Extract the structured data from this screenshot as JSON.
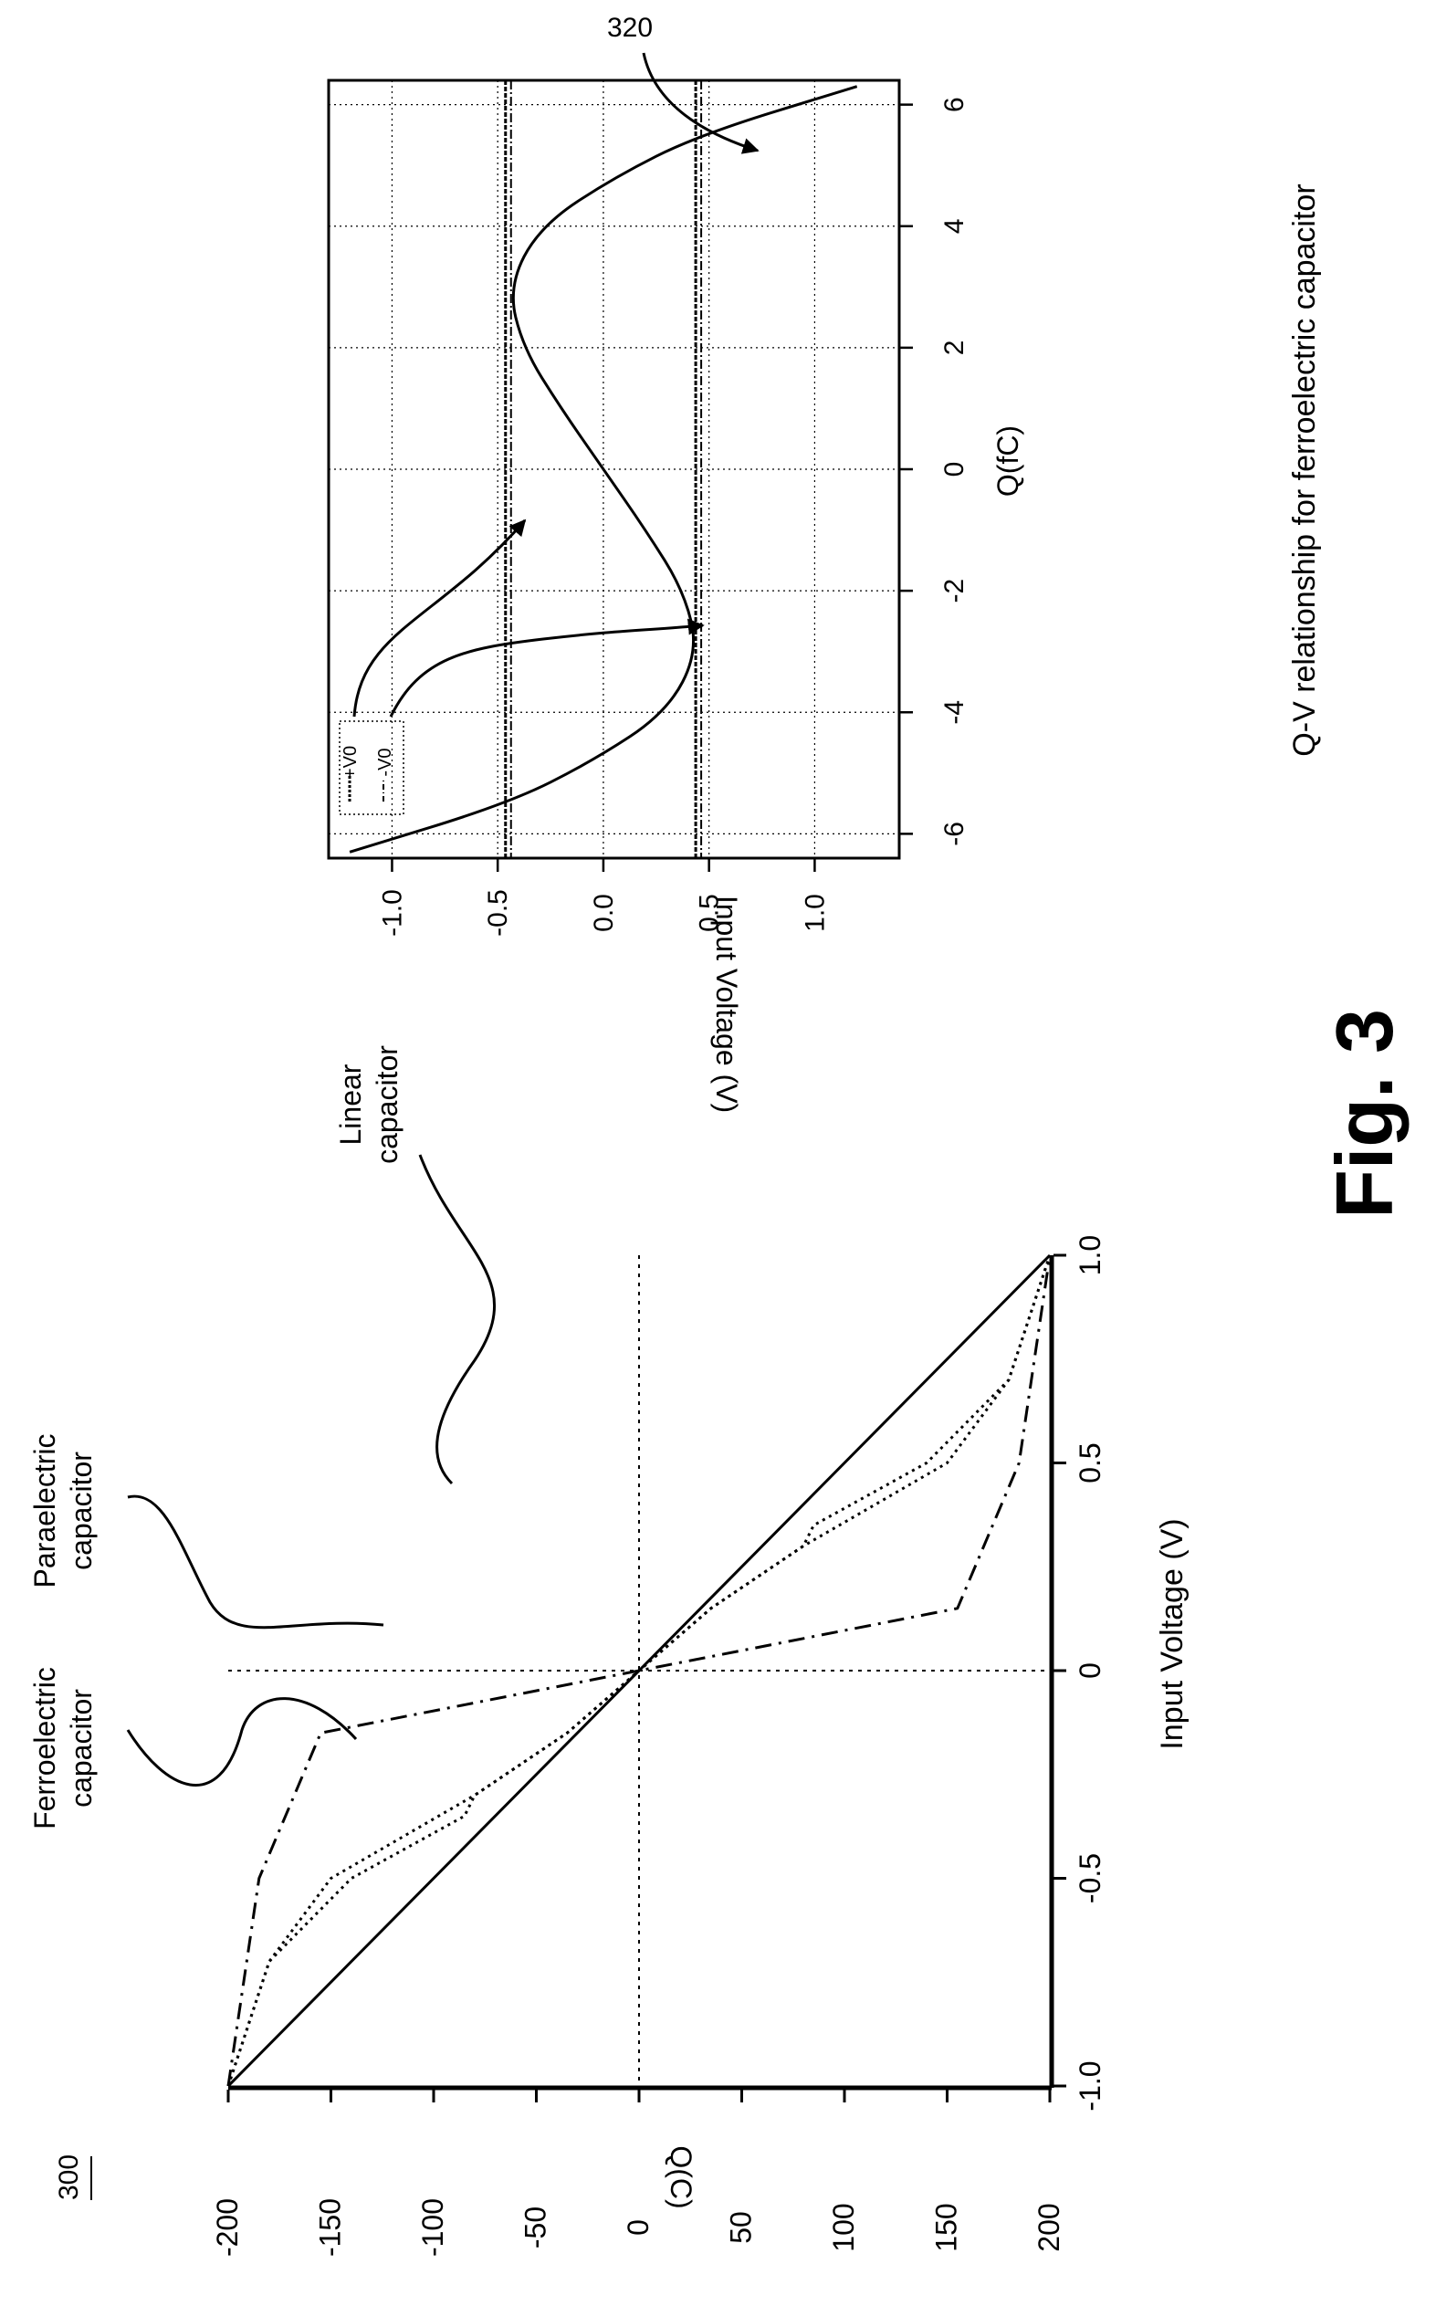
{
  "figure": {
    "ref_main": "300",
    "ref_inset": "320",
    "caption": "Fig. 3"
  },
  "chart_data": [
    {
      "type": "line",
      "title": "",
      "xlabel": "Input Voltage (V)",
      "ylabel": "Q(C)",
      "xlim": [
        -1.0,
        1.0
      ],
      "ylim": [
        -200,
        200
      ],
      "x_ticks": [
        "-1.0",
        "-0.5",
        "0",
        "0.5",
        "1.0"
      ],
      "y_ticks": [
        "-200",
        "-150",
        "-100",
        "-50",
        "0",
        "50",
        "100",
        "150",
        "200"
      ],
      "annotations": [
        {
          "text": "Ferroelectric\ncapacitor",
          "label": "Ferroelectric",
          "label2": "capacitor"
        },
        {
          "text": "Paraelectric\ncapacitor",
          "label": "Paraelectric",
          "label2": "capacitor"
        },
        {
          "text": "Linear\ncapacitor",
          "label": "Linear",
          "label2": "capacitor"
        }
      ],
      "series": [
        {
          "style": "solid",
          "x": [
            -1.0,
            1.0
          ],
          "y": [
            -200,
            200
          ]
        },
        {
          "style": "dash-dot",
          "x": [
            -1.0,
            -0.5,
            -0.15,
            0,
            0.15,
            0.5,
            1.0
          ],
          "y": [
            -200,
            -185,
            -155,
            0,
            155,
            185,
            200
          ]
        },
        {
          "style": "dotted",
          "x": [
            -1.0,
            -0.7,
            -0.5,
            -0.3,
            -0.15,
            0,
            0.15,
            0.3,
            0.35,
            0.5,
            0.7,
            1.0
          ],
          "y": [
            -200,
            -180,
            -150,
            -80,
            -35,
            0,
            35,
            80,
            85,
            140,
            180,
            200
          ]
        },
        {
          "style": "dotted",
          "x": [
            -1.0,
            -0.7,
            -0.5,
            -0.35,
            -0.3,
            -0.15,
            0,
            0.15,
            0.3,
            0.5,
            0.7,
            1.0
          ],
          "y": [
            -200,
            -180,
            -140,
            -85,
            -80,
            -35,
            0,
            35,
            80,
            150,
            180,
            200
          ]
        }
      ]
    },
    {
      "type": "line",
      "title": "Q-V relationship for ferroelectric capacitor",
      "xlabel": "Q(fC)",
      "ylabel": "Input Voltage (V)",
      "xlim": [
        -6.4,
        6.4
      ],
      "ylim": [
        -1.3,
        1.4
      ],
      "x_ticks": [
        "-6",
        "-4",
        "-2",
        "0",
        "2",
        "4",
        "6"
      ],
      "y_ticks": [
        "-1.0",
        "-0.5",
        "0.0",
        "0.5",
        "1.0"
      ],
      "legend": [
        "+V0",
        "-V0"
      ],
      "legend_placement": "top-left",
      "grid": true,
      "hlines": [
        0.45,
        -0.45
      ],
      "series": [
        {
          "x": [
            -6.3,
            -5.5,
            -4.8,
            -4.0,
            -3.0,
            -2.0,
            -1.0,
            0,
            1.0,
            2.0,
            3.0,
            4.0,
            4.8,
            5.5,
            6.3
          ],
          "y": [
            -1.2,
            -0.45,
            -0.05,
            0.3,
            0.45,
            0.38,
            0.2,
            0,
            -0.2,
            -0.38,
            -0.45,
            -0.3,
            0.05,
            0.45,
            1.2
          ]
        }
      ]
    }
  ]
}
